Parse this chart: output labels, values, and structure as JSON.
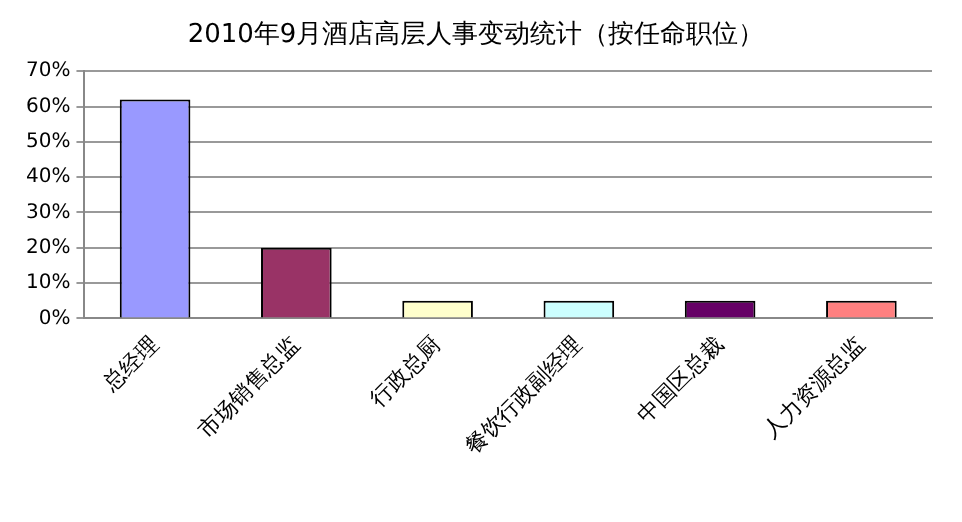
{
  "chart_data": {
    "type": "bar",
    "title": "2010年9月酒店高层人事变动统计（按任命职位）",
    "categories": [
      "总经理",
      "市场销售总监",
      "行政总厨",
      "餐饮行政副经理",
      "中国区总裁",
      "人力资源总监"
    ],
    "values": [
      62,
      20,
      5,
      5,
      5,
      5
    ],
    "colors": [
      "#9999ff",
      "#993366",
      "#ffffcc",
      "#ccffff",
      "#660066",
      "#ff8080"
    ],
    "ylim": [
      0,
      70
    ],
    "yticks": [
      {
        "value": 0,
        "label": "0%"
      },
      {
        "value": 10,
        "label": "10%"
      },
      {
        "value": 20,
        "label": "20%"
      },
      {
        "value": 30,
        "label": "30%"
      },
      {
        "value": 40,
        "label": "40%"
      },
      {
        "value": 50,
        "label": "50%"
      },
      {
        "value": 60,
        "label": "60%"
      },
      {
        "value": 70,
        "label": "70%"
      }
    ],
    "grid": "y",
    "legend": false
  }
}
